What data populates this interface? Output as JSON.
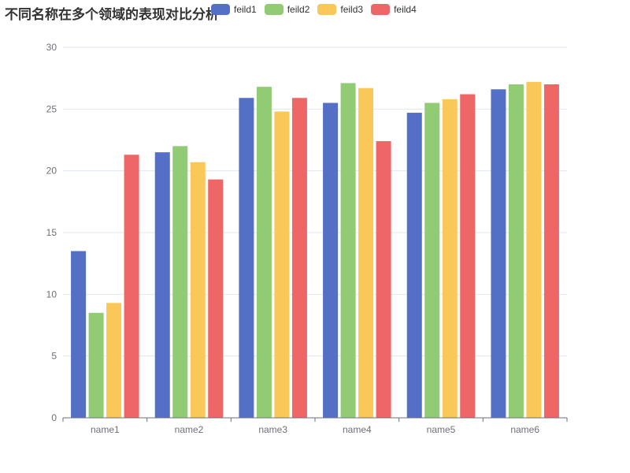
{
  "chart_data": {
    "type": "bar",
    "title": "不同名称在多个领域的表现对比分析",
    "categories": [
      "name1",
      "name2",
      "name3",
      "name4",
      "name5",
      "name6"
    ],
    "series": [
      {
        "name": "feild1",
        "color": "#5470c6",
        "values": [
          13.5,
          21.5,
          25.9,
          25.5,
          24.7,
          26.6
        ]
      },
      {
        "name": "feild2",
        "color": "#91cc75",
        "values": [
          8.5,
          22.0,
          26.8,
          27.1,
          25.5,
          27.0
        ]
      },
      {
        "name": "feild3",
        "color": "#fac858",
        "values": [
          9.3,
          20.7,
          24.8,
          26.7,
          25.8,
          27.2
        ]
      },
      {
        "name": "feild4",
        "color": "#ee6666",
        "values": [
          21.3,
          19.3,
          25.9,
          22.4,
          26.2,
          27.0
        ]
      }
    ],
    "yticks": [
      0,
      5,
      10,
      15,
      20,
      25,
      30
    ],
    "ylim": [
      0,
      30
    ],
    "xlabel": "",
    "ylabel": "",
    "grid": true,
    "legend_position": "top"
  }
}
